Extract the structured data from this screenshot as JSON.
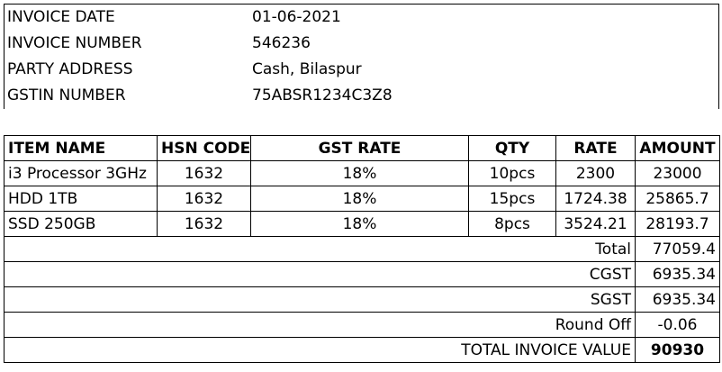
{
  "header": {
    "rows": [
      {
        "label": "INVOICE DATE",
        "value": "01-06-2021"
      },
      {
        "label": "INVOICE NUMBER",
        "value": "546236"
      },
      {
        "label": "PARTY ADDRESS",
        "value": "Cash, Bilaspur"
      },
      {
        "label": "GSTIN NUMBER",
        "value": "75ABSR1234C3Z8"
      }
    ]
  },
  "table": {
    "columns": [
      "ITEM NAME",
      "HSN CODE",
      "GST RATE",
      "QTY",
      "RATE",
      "AMOUNT"
    ],
    "rows": [
      {
        "item": "i3 Processor 3GHz",
        "hsn": "1632",
        "gst": "18%",
        "qty": "10pcs",
        "rate": "2300",
        "amount": "23000"
      },
      {
        "item": "HDD 1TB",
        "hsn": "1632",
        "gst": "18%",
        "qty": "15pcs",
        "rate": "1724.38",
        "amount": "25865.7"
      },
      {
        "item": "SSD 250GB",
        "hsn": "1632",
        "gst": "18%",
        "qty": "8pcs",
        "rate": "3524.21",
        "amount": "28193.7"
      }
    ]
  },
  "summary": [
    {
      "label": "Total",
      "value": "77059.4"
    },
    {
      "label": "CGST",
      "value": "6935.34"
    },
    {
      "label": "SGST",
      "value": "6935.34"
    },
    {
      "label": "Round Off",
      "value": "-0.06"
    },
    {
      "label": "TOTAL INVOICE VALUE",
      "value": "90930"
    }
  ]
}
